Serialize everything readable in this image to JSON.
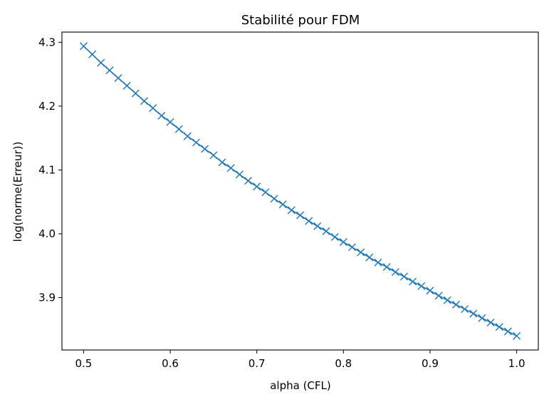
{
  "chart_data": {
    "type": "line",
    "title": "Stabilité pour FDM",
    "xlabel": "alpha (CFL)",
    "ylabel": "log(norme(Erreur))",
    "marker": "x",
    "color": "#1f77b4",
    "xlim": [
      0.475,
      1.025
    ],
    "ylim": [
      3.818,
      4.316
    ],
    "xticks": [
      0.5,
      0.6,
      0.7,
      0.8,
      0.9,
      1.0
    ],
    "xtick_labels": [
      "0.5",
      "0.6",
      "0.7",
      "0.8",
      "0.9",
      "1.0"
    ],
    "yticks": [
      3.9,
      4.0,
      4.1,
      4.2,
      4.3
    ],
    "ytick_labels": [
      "3.9",
      "4.0",
      "4.1",
      "4.2",
      "4.3"
    ],
    "grid": false,
    "series": [
      {
        "x": [
          0.5,
          0.51,
          0.52,
          0.53,
          0.54,
          0.55,
          0.56,
          0.57,
          0.58,
          0.59,
          0.6,
          0.61,
          0.62,
          0.63,
          0.64,
          0.65,
          0.66,
          0.67,
          0.68,
          0.69,
          0.7,
          0.71,
          0.72,
          0.73,
          0.74,
          0.75,
          0.76,
          0.77,
          0.78,
          0.79,
          0.8,
          0.81,
          0.82,
          0.83,
          0.84,
          0.85,
          0.86,
          0.87,
          0.88,
          0.89,
          0.9,
          0.91,
          0.92,
          0.93,
          0.94,
          0.95,
          0.96,
          0.97,
          0.98,
          0.99,
          1.0
        ],
        "y": [
          4.294,
          4.281,
          4.268,
          4.256,
          4.244,
          4.232,
          4.22,
          4.208,
          4.197,
          4.185,
          4.175,
          4.164,
          4.153,
          4.143,
          4.133,
          4.123,
          4.112,
          4.103,
          4.093,
          4.083,
          4.074,
          4.065,
          4.055,
          4.046,
          4.037,
          4.029,
          4.02,
          4.012,
          4.004,
          3.995,
          3.987,
          3.979,
          3.971,
          3.963,
          3.955,
          3.948,
          3.94,
          3.933,
          3.925,
          3.918,
          3.911,
          3.903,
          3.896,
          3.889,
          3.882,
          3.875,
          3.868,
          3.861,
          3.854,
          3.847,
          3.84
        ]
      }
    ]
  }
}
